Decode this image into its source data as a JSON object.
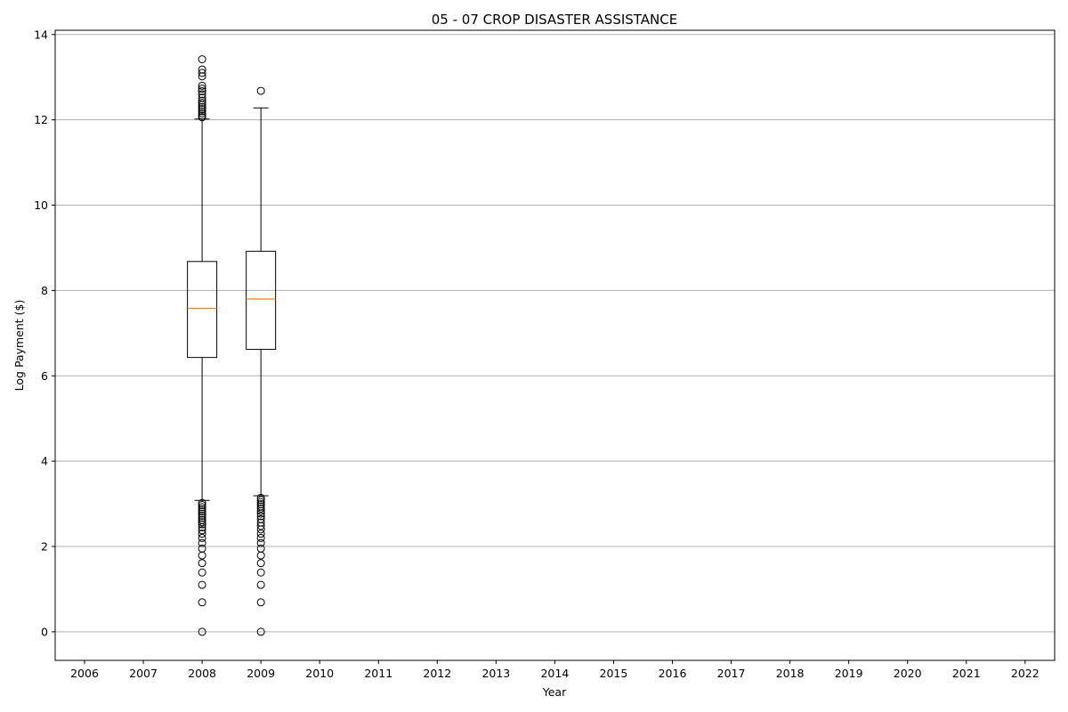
{
  "chart_data": {
    "type": "boxplot",
    "title": "05 - 07 CROP DISASTER ASSISTANCE",
    "xlabel": "Year",
    "ylabel": "Log Payment ($)",
    "categories": [
      "2006",
      "2007",
      "2008",
      "2009",
      "2010",
      "2011",
      "2012",
      "2013",
      "2014",
      "2015",
      "2016",
      "2017",
      "2018",
      "2019",
      "2020",
      "2021",
      "2022"
    ],
    "ylim": [
      -0.67,
      14.1
    ],
    "yticks": [
      0,
      2,
      4,
      6,
      8,
      10,
      12,
      14
    ],
    "grid": "y",
    "series": [
      {
        "category": "2008",
        "whisker_low": 3.08,
        "q1": 6.43,
        "median": 7.58,
        "q3": 8.68,
        "whisker_high": 12.02,
        "outliers_high": [
          12.06,
          12.1,
          12.15,
          12.2,
          12.25,
          12.3,
          12.35,
          12.4,
          12.45,
          12.52,
          12.6,
          12.67,
          12.73,
          12.8,
          13.02,
          13.1,
          13.18,
          13.42
        ],
        "outliers_low": [
          3.02,
          2.97,
          2.92,
          2.87,
          2.82,
          2.77,
          2.72,
          2.67,
          2.62,
          2.57,
          2.52,
          2.45,
          2.38,
          2.3,
          2.2,
          2.08,
          1.95,
          1.79,
          1.61,
          1.39,
          1.1,
          0.69,
          0.0
        ]
      },
      {
        "category": "2009",
        "whisker_low": 3.19,
        "q1": 6.62,
        "median": 7.8,
        "q3": 8.92,
        "whisker_high": 12.28,
        "outliers_high": [
          12.68
        ],
        "outliers_low": [
          3.14,
          3.09,
          3.04,
          2.99,
          2.94,
          2.89,
          2.83,
          2.77,
          2.71,
          2.64,
          2.56,
          2.48,
          2.4,
          2.3,
          2.2,
          2.08,
          1.95,
          1.79,
          1.61,
          1.39,
          1.1,
          0.69,
          0.0
        ]
      }
    ],
    "colors": {
      "box": "#000000",
      "median": "#ff7f0e",
      "grid": "#b0b0b0"
    }
  }
}
